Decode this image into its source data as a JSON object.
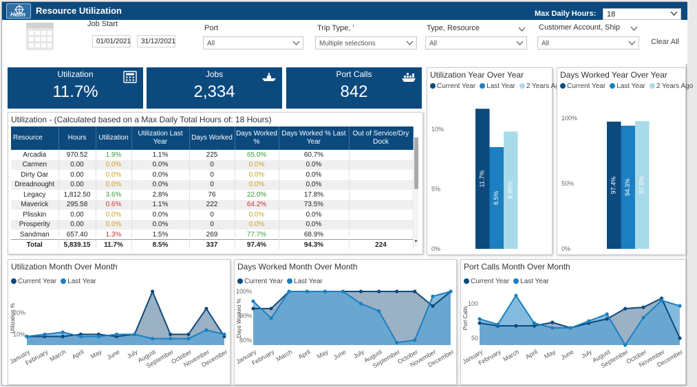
{
  "header": {
    "title": "Resource Utilization",
    "logo_text": "Helm",
    "max_hours_label": "Max Daily Hours:",
    "max_hours_value": "18"
  },
  "filters": {
    "job_start_label": "Job Start",
    "start_date": "01/01/2021",
    "end_date": "31/12/2021",
    "port_label": "Port",
    "port_value": "All",
    "trip_type_label": "Trip Type, '",
    "trip_type_value": "Multiple selections",
    "resource_type_label": "Type, Resource",
    "resource_type_value": "All",
    "customer_label": "Customer Account, Ship",
    "customer_value": "All",
    "clear_all": "Clear All"
  },
  "kpis": [
    {
      "label": "Utilization",
      "value": "11.7%",
      "icon": "calculator-icon"
    },
    {
      "label": "Jobs",
      "value": "2,334",
      "icon": "ship-icon"
    },
    {
      "label": "Port Calls",
      "value": "842",
      "icon": "cargo-ship-icon"
    }
  ],
  "util_table": {
    "title": "Utilization - (Calculated based on a Max Daily Total Hours of: 18 Hours)",
    "columns": [
      "Resource",
      "Hours",
      "Utilization",
      "Utilization Last Year",
      "Days Worked",
      "Days Worked %",
      "Days Worked % Last Year",
      "Out of Service/Dry Dock"
    ],
    "rows": [
      [
        "Arcadia",
        "970.52",
        "1.9%",
        "1.1%",
        "225",
        "65.0%",
        "60.7%",
        ""
      ],
      [
        "Carmen",
        "0.00",
        "0.0%",
        "0.0%",
        "0",
        "0.0%",
        "0.0%",
        ""
      ],
      [
        "Dirty Oar",
        "0.00",
        "0.0%",
        "0.0%",
        "0",
        "0.0%",
        "0.0%",
        ""
      ],
      [
        "Dreadnought",
        "0.00",
        "0.0%",
        "0.0%",
        "0",
        "0.0%",
        "0.0%",
        ""
      ],
      [
        "Legacy",
        "1,812.50",
        "3.6%",
        "2.8%",
        "76",
        "22.0%",
        "17.8%",
        ""
      ],
      [
        "Maverick",
        "295.58",
        "0.6%",
        "1.1%",
        "222",
        "64.2%",
        "73.5%",
        ""
      ],
      [
        "Plisskin",
        "0.00",
        "0.0%",
        "0.0%",
        "0",
        "0.0%",
        "0.0%",
        ""
      ],
      [
        "Prosperity",
        "0.00",
        "0.0%",
        "0.0%",
        "0",
        "0.0%",
        "0.0%",
        ""
      ],
      [
        "Sandman",
        "657.40",
        "1.3%",
        "1.5%",
        "269",
        "77.7%",
        "68.9%",
        ""
      ]
    ],
    "row_colors": [
      [
        "g",
        "g"
      ],
      [
        "y",
        "y"
      ],
      [
        "y",
        "y"
      ],
      [
        "y",
        "y"
      ],
      [
        "g",
        "g"
      ],
      [
        "r",
        "r"
      ],
      [
        "y",
        "y"
      ],
      [
        "y",
        "y"
      ],
      [
        "r",
        "g"
      ]
    ],
    "total": [
      "Total",
      "5,839.15",
      "11.7%",
      "8.5%",
      "337",
      "97.4%",
      "94.3%",
      "224"
    ]
  },
  "colors": {
    "current": "#0c4a7e",
    "last": "#1b7fc1",
    "two_ago": "#a8dbea",
    "area_current": "#8aa3ba",
    "area_last": "#5aa4d4"
  },
  "chart_data": [
    {
      "id": "util_yoy",
      "type": "bar",
      "title": "Utilization Year Over Year",
      "categories": [
        "Current Year",
        "Last Year",
        "2 Years Ago"
      ],
      "values": [
        11.7,
        8.5,
        9.8
      ],
      "labels": [
        "11.7%",
        "8.5%",
        "9.80%"
      ],
      "yticks": [
        "0%",
        "5%",
        "10%"
      ],
      "ylim": [
        0,
        12
      ]
    },
    {
      "id": "days_yoy",
      "type": "bar",
      "title": "Days Worked Year Over Year",
      "categories": [
        "Current Year",
        "Last Year",
        "2 Years Ago"
      ],
      "values": [
        97.4,
        94.3,
        97.8
      ],
      "labels": [
        "97.4%",
        "94.3%",
        "97.8%"
      ],
      "yticks": [
        "0%",
        "50%",
        "100%"
      ],
      "ylim": [
        0,
        110
      ]
    },
    {
      "id": "util_mom",
      "type": "area",
      "title": "Utilization Month Over Month",
      "ylabel": "Utilization %",
      "x": [
        "January",
        "February",
        "March",
        "April",
        "May",
        "June",
        "July",
        "August",
        "September",
        "October",
        "November",
        "December"
      ],
      "series": [
        {
          "name": "Current Year",
          "values": [
            9,
            9,
            9,
            10,
            10,
            9,
            10,
            30,
            10,
            10,
            22,
            9
          ]
        },
        {
          "name": "Last Year",
          "values": [
            9,
            10,
            11,
            9,
            9,
            10,
            10,
            8,
            8,
            8,
            12,
            10
          ]
        }
      ],
      "yticks": [
        10,
        20
      ],
      "ytick_labels": [
        "10%",
        "20%"
      ],
      "ylim": [
        5,
        30
      ]
    },
    {
      "id": "days_mom",
      "type": "area",
      "title": "Days Worked Month Over Month",
      "ylabel": "Days Worked %",
      "x": [
        "January",
        "February",
        "March",
        "April",
        "May",
        "June",
        "July",
        "August",
        "September",
        "October",
        "November",
        "December"
      ],
      "series": [
        {
          "name": "Current Year",
          "values": [
            93,
            93,
            100,
            100,
            100,
            100,
            100,
            100,
            100,
            100,
            94,
            100
          ]
        },
        {
          "name": "Last Year",
          "values": [
            96,
            89,
            100,
            100,
            100,
            100,
            95,
            92,
            79,
            80,
            98,
            100
          ]
        }
      ],
      "yticks": [
        80,
        90,
        100
      ],
      "ytick_labels": [
        "80%",
        "90%",
        "100%"
      ],
      "ylim": [
        78,
        100
      ]
    },
    {
      "id": "portcalls_mom",
      "type": "area",
      "title": "Port Calls Month Over Month",
      "ylabel": "Port Calls",
      "x": [
        "January",
        "February",
        "March",
        "April",
        "May",
        "June",
        "July",
        "August",
        "September",
        "October",
        "November",
        "December"
      ],
      "series": [
        {
          "name": "Current Year",
          "values": [
            72,
            68,
            68,
            68,
            73,
            65,
            72,
            78,
            93,
            95,
            108,
            50
          ]
        },
        {
          "name": "Last Year",
          "values": [
            78,
            70,
            112,
            72,
            65,
            65,
            75,
            85,
            40,
            80,
            105,
            97
          ]
        }
      ],
      "yticks": [
        50,
        100
      ],
      "ytick_labels": [
        "50",
        "100"
      ],
      "ylim": [
        40,
        118
      ]
    }
  ]
}
